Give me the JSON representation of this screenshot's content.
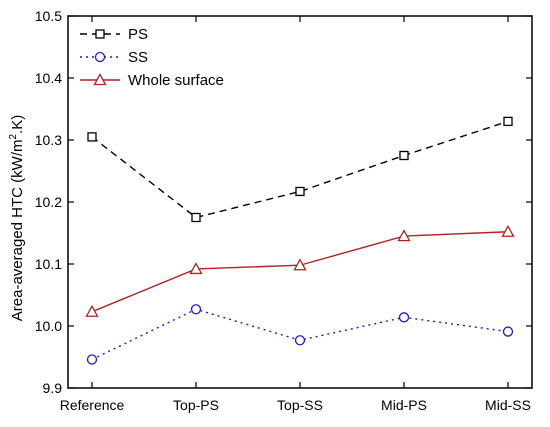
{
  "chart_data": {
    "type": "line",
    "title": "",
    "xlabel": "",
    "ylabel": "Area-averaged HTC (kW/m",
    "ylabel_sup": "2",
    "ylabel_tail": ".K)",
    "categories": [
      "Reference",
      "Top-PS",
      "Top-SS",
      "Mid-PS",
      "Mid-SS"
    ],
    "ylim": [
      9.9,
      10.5
    ],
    "yticks": [
      9.9,
      10.0,
      10.1,
      10.2,
      10.3,
      10.4,
      10.5
    ],
    "ytick_labels": [
      "9.9",
      "10.0",
      "10.1",
      "10.2",
      "10.3",
      "10.4",
      "10.5"
    ],
    "grid": false,
    "legend_position": "top-left",
    "series": [
      {
        "name": "PS",
        "values": [
          10.305,
          10.175,
          10.217,
          10.275,
          10.33
        ],
        "color": "#000000",
        "dash": "7,5",
        "marker": "square"
      },
      {
        "name": "SS",
        "values": [
          9.946,
          10.027,
          9.977,
          10.014,
          9.991
        ],
        "color": "#1a1adb",
        "dash": "2,4",
        "marker": "circle"
      },
      {
        "name": "Whole surface",
        "values": [
          10.023,
          10.092,
          10.098,
          10.145,
          10.152
        ],
        "color": "#b22222",
        "dash": "",
        "marker": "triangle"
      }
    ]
  }
}
